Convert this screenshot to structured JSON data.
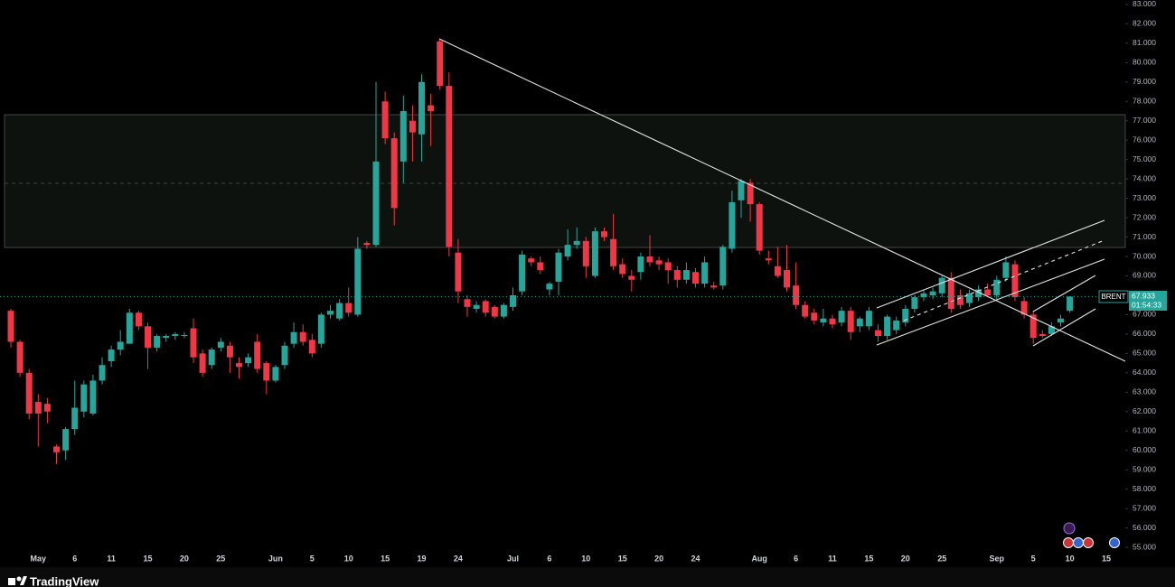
{
  "chart_data": {
    "type": "candlestick",
    "symbol": "BRENT",
    "countdown": "01:54:33",
    "brand": "TradingView",
    "up_color": "#26a69a",
    "down_color": "#f23645",
    "open": [
      67.2,
      65.6,
      64.0,
      62.5,
      62.4,
      60.2,
      60.0,
      61.1,
      62.0,
      61.9,
      63.6,
      64.6,
      65.2,
      65.5,
      67.1,
      66.4,
      65.3,
      65.8,
      65.9,
      65.9,
      66.3,
      65.0,
      64.4,
      65.3,
      65.4,
      64.5,
      64.5,
      65.6,
      64.5,
      63.6,
      64.4,
      65.5,
      66.1,
      65.7,
      65.5,
      67.0,
      66.8,
      67.6,
      67.0,
      70.7,
      70.6,
      78.0,
      76.1,
      74.9,
      77.0,
      76.3,
      77.8,
      81.1,
      78.8,
      70.2,
      67.8,
      67.3,
      67.7,
      67.4,
      66.9,
      67.4,
      68.2,
      69.9,
      69.7,
      68.3,
      68.7,
      70.0,
      70.6,
      70.8,
      69.0,
      71.3,
      70.9,
      69.6,
      69.0,
      69.2,
      70.0,
      69.8,
      69.7,
      69.3,
      68.8,
      69.2,
      68.6,
      68.5,
      68.5,
      70.4,
      72.9,
      73.8,
      72.7,
      69.9,
      69.5,
      69.3,
      68.5,
      67.5,
      67.1,
      66.6,
      66.8,
      66.6,
      67.2,
      66.4,
      66.4,
      66.2,
      65.9,
      66.2,
      66.6,
      67.3,
      67.9,
      68.0,
      68.1,
      68.9,
      68.0,
      67.6,
      67.9,
      68.3,
      68.0,
      68.9,
      69.6,
      67.7,
      67.0,
      66.0,
      66.0,
      66.6,
      67.2
    ],
    "high": [
      67.3,
      65.7,
      64.2,
      62.9,
      62.7,
      60.3,
      61.2,
      63.6,
      63.6,
      63.9,
      64.8,
      65.4,
      66.2,
      67.3,
      67.2,
      66.6,
      66.0,
      66.0,
      66.1,
      66.1,
      66.8,
      65.2,
      65.3,
      65.8,
      65.6,
      64.8,
      65.0,
      66.0,
      64.6,
      64.4,
      65.6,
      66.6,
      66.5,
      66.0,
      67.1,
      67.5,
      67.8,
      68.4,
      71.0,
      70.8,
      79.0,
      78.5,
      76.4,
      78.3,
      77.8,
      79.4,
      78.4,
      81.2,
      79.5,
      70.9,
      68.0,
      67.7,
      67.8,
      67.5,
      67.6,
      68.4,
      70.3,
      70.0,
      70.0,
      68.7,
      70.4,
      71.4,
      71.5,
      71.0,
      71.5,
      71.5,
      72.2,
      69.9,
      69.3,
      70.2,
      71.1,
      70.0,
      69.9,
      69.5,
      69.7,
      69.4,
      70.0,
      68.7,
      70.6,
      73.4,
      74.0,
      74.0,
      72.8,
      70.3,
      70.5,
      70.6,
      69.7,
      67.7,
      67.3,
      67.3,
      67.0,
      67.4,
      67.4,
      66.9,
      67.4,
      66.5,
      67.0,
      66.9,
      67.5,
      68.0,
      68.3,
      68.4,
      69.0,
      69.2,
      68.3,
      68.3,
      68.5,
      68.6,
      69.0,
      70.0,
      69.8,
      67.9,
      67.2,
      66.2,
      66.6,
      67.0,
      67.95
    ],
    "low": [
      65.3,
      63.8,
      61.6,
      60.2,
      61.4,
      59.3,
      59.5,
      60.8,
      61.7,
      61.8,
      63.4,
      64.3,
      64.9,
      65.5,
      66.2,
      64.2,
      65.1,
      65.6,
      65.7,
      65.8,
      64.5,
      63.8,
      64.2,
      65.1,
      64.0,
      63.7,
      64.3,
      64.0,
      62.9,
      63.5,
      64.2,
      65.3,
      65.4,
      64.8,
      65.3,
      66.8,
      66.7,
      66.9,
      66.9,
      70.4,
      70.5,
      75.8,
      71.6,
      73.8,
      74.9,
      74.9,
      75.7,
      78.6,
      70.0,
      67.6,
      66.9,
      67.1,
      66.9,
      66.8,
      66.8,
      67.2,
      68.0,
      69.5,
      69.1,
      68.0,
      68.0,
      69.8,
      70.4,
      68.9,
      68.9,
      70.8,
      69.3,
      68.9,
      68.2,
      68.8,
      69.5,
      69.3,
      68.6,
      68.4,
      68.6,
      68.4,
      68.4,
      68.3,
      68.3,
      70.2,
      72.0,
      71.8,
      70.1,
      69.6,
      68.9,
      68.2,
      67.3,
      66.8,
      66.5,
      66.4,
      66.3,
      66.4,
      65.7,
      66.1,
      66.2,
      65.6,
      65.7,
      66.0,
      66.4,
      67.1,
      67.7,
      67.8,
      67.9,
      67.1,
      67.3,
      67.4,
      67.7,
      67.9,
      67.8,
      68.7,
      67.7,
      66.8,
      65.5,
      65.8,
      65.9,
      66.4,
      67.1
    ],
    "close": [
      65.6,
      64.0,
      61.9,
      61.9,
      62.0,
      59.9,
      61.1,
      62.2,
      63.4,
      63.6,
      64.4,
      65.2,
      65.6,
      67.1,
      66.4,
      65.3,
      65.9,
      65.9,
      66.0,
      65.95,
      64.8,
      64.0,
      65.2,
      65.6,
      64.8,
      64.3,
      64.8,
      64.2,
      63.6,
      64.3,
      65.4,
      66.1,
      65.6,
      65.0,
      67.0,
      67.2,
      67.6,
      67.1,
      70.4,
      70.6,
      74.9,
      76.1,
      72.5,
      77.5,
      76.4,
      79.0,
      77.5,
      78.8,
      70.5,
      68.2,
      67.4,
      67.5,
      67.1,
      66.9,
      67.5,
      68.0,
      70.1,
      69.7,
      69.3,
      68.6,
      70.2,
      70.6,
      70.8,
      69.5,
      71.3,
      71.0,
      69.5,
      69.1,
      68.8,
      70.0,
      69.7,
      69.6,
      69.3,
      68.8,
      69.3,
      68.6,
      69.7,
      68.4,
      70.5,
      72.8,
      73.9,
      72.7,
      70.3,
      69.8,
      69.0,
      68.4,
      67.5,
      66.9,
      66.7,
      66.8,
      66.5,
      67.2,
      66.1,
      66.8,
      67.2,
      65.9,
      66.9,
      66.7,
      67.3,
      67.9,
      68.1,
      68.2,
      68.9,
      67.3,
      67.5,
      68.1,
      68.3,
      68.0,
      68.8,
      69.7,
      67.9,
      67.0,
      65.8,
      65.9,
      66.4,
      66.8,
      67.933
    ],
    "xlim": [
      -1.19,
      122.08
    ],
    "xticks": [
      {
        "value": 3,
        "label": "May"
      },
      {
        "value": 7,
        "label": "6"
      },
      {
        "value": 11,
        "label": "11"
      },
      {
        "value": 15,
        "label": "15"
      },
      {
        "value": 19,
        "label": "20"
      },
      {
        "value": 23,
        "label": "25"
      },
      {
        "value": 29,
        "label": "Jun"
      },
      {
        "value": 33,
        "label": "5"
      },
      {
        "value": 37,
        "label": "10"
      },
      {
        "value": 41,
        "label": "15"
      },
      {
        "value": 45,
        "label": "19"
      },
      {
        "value": 49,
        "label": "24"
      },
      {
        "value": 55,
        "label": "Jul"
      },
      {
        "value": 59,
        "label": "6"
      },
      {
        "value": 63,
        "label": "10"
      },
      {
        "value": 67,
        "label": "15"
      },
      {
        "value": 71,
        "label": "20"
      },
      {
        "value": 75,
        "label": "24"
      },
      {
        "value": 82,
        "label": "Aug"
      },
      {
        "value": 86,
        "label": "6"
      },
      {
        "value": 90,
        "label": "11"
      },
      {
        "value": 94,
        "label": "15"
      },
      {
        "value": 98,
        "label": "20"
      },
      {
        "value": 102,
        "label": "25"
      },
      {
        "value": 108,
        "label": "Sep"
      },
      {
        "value": 112,
        "label": "5"
      },
      {
        "value": 116,
        "label": "10"
      },
      {
        "value": 120,
        "label": "15"
      }
    ],
    "ylim": [
      54.35,
      83.23
    ],
    "yticks": [
      {
        "value": 55,
        "label": "55.000"
      },
      {
        "value": 56,
        "label": "56.000"
      },
      {
        "value": 57,
        "label": "57.000"
      },
      {
        "value": 58,
        "label": "58.000"
      },
      {
        "value": 59,
        "label": "59.000"
      },
      {
        "value": 60,
        "label": "60.000"
      },
      {
        "value": 61,
        "label": "61.000"
      },
      {
        "value": 62,
        "label": "62.000"
      },
      {
        "value": 63,
        "label": "63.000"
      },
      {
        "value": 64,
        "label": "64.000"
      },
      {
        "value": 65,
        "label": "65.000"
      },
      {
        "value": 66,
        "label": "66.000"
      },
      {
        "value": 67,
        "label": "67.000"
      },
      {
        "value": 68,
        "label": "68.000"
      },
      {
        "value": 69,
        "label": "69.000"
      },
      {
        "value": 70,
        "label": "70.000"
      },
      {
        "value": 71,
        "label": "71.000"
      },
      {
        "value": 72,
        "label": "72.000"
      },
      {
        "value": 73,
        "label": "73.000"
      },
      {
        "value": 74,
        "label": "74.000"
      },
      {
        "value": 75,
        "label": "75.000"
      },
      {
        "value": 76,
        "label": "76.000"
      },
      {
        "value": 77,
        "label": "77.000"
      },
      {
        "value": 78,
        "label": "78.000"
      },
      {
        "value": 79,
        "label": "79.000"
      },
      {
        "value": 80,
        "label": "80.000"
      },
      {
        "value": 81,
        "label": "81.000"
      },
      {
        "value": 82,
        "label": "82.000"
      },
      {
        "value": 83,
        "label": "83.000"
      }
    ]
  }
}
